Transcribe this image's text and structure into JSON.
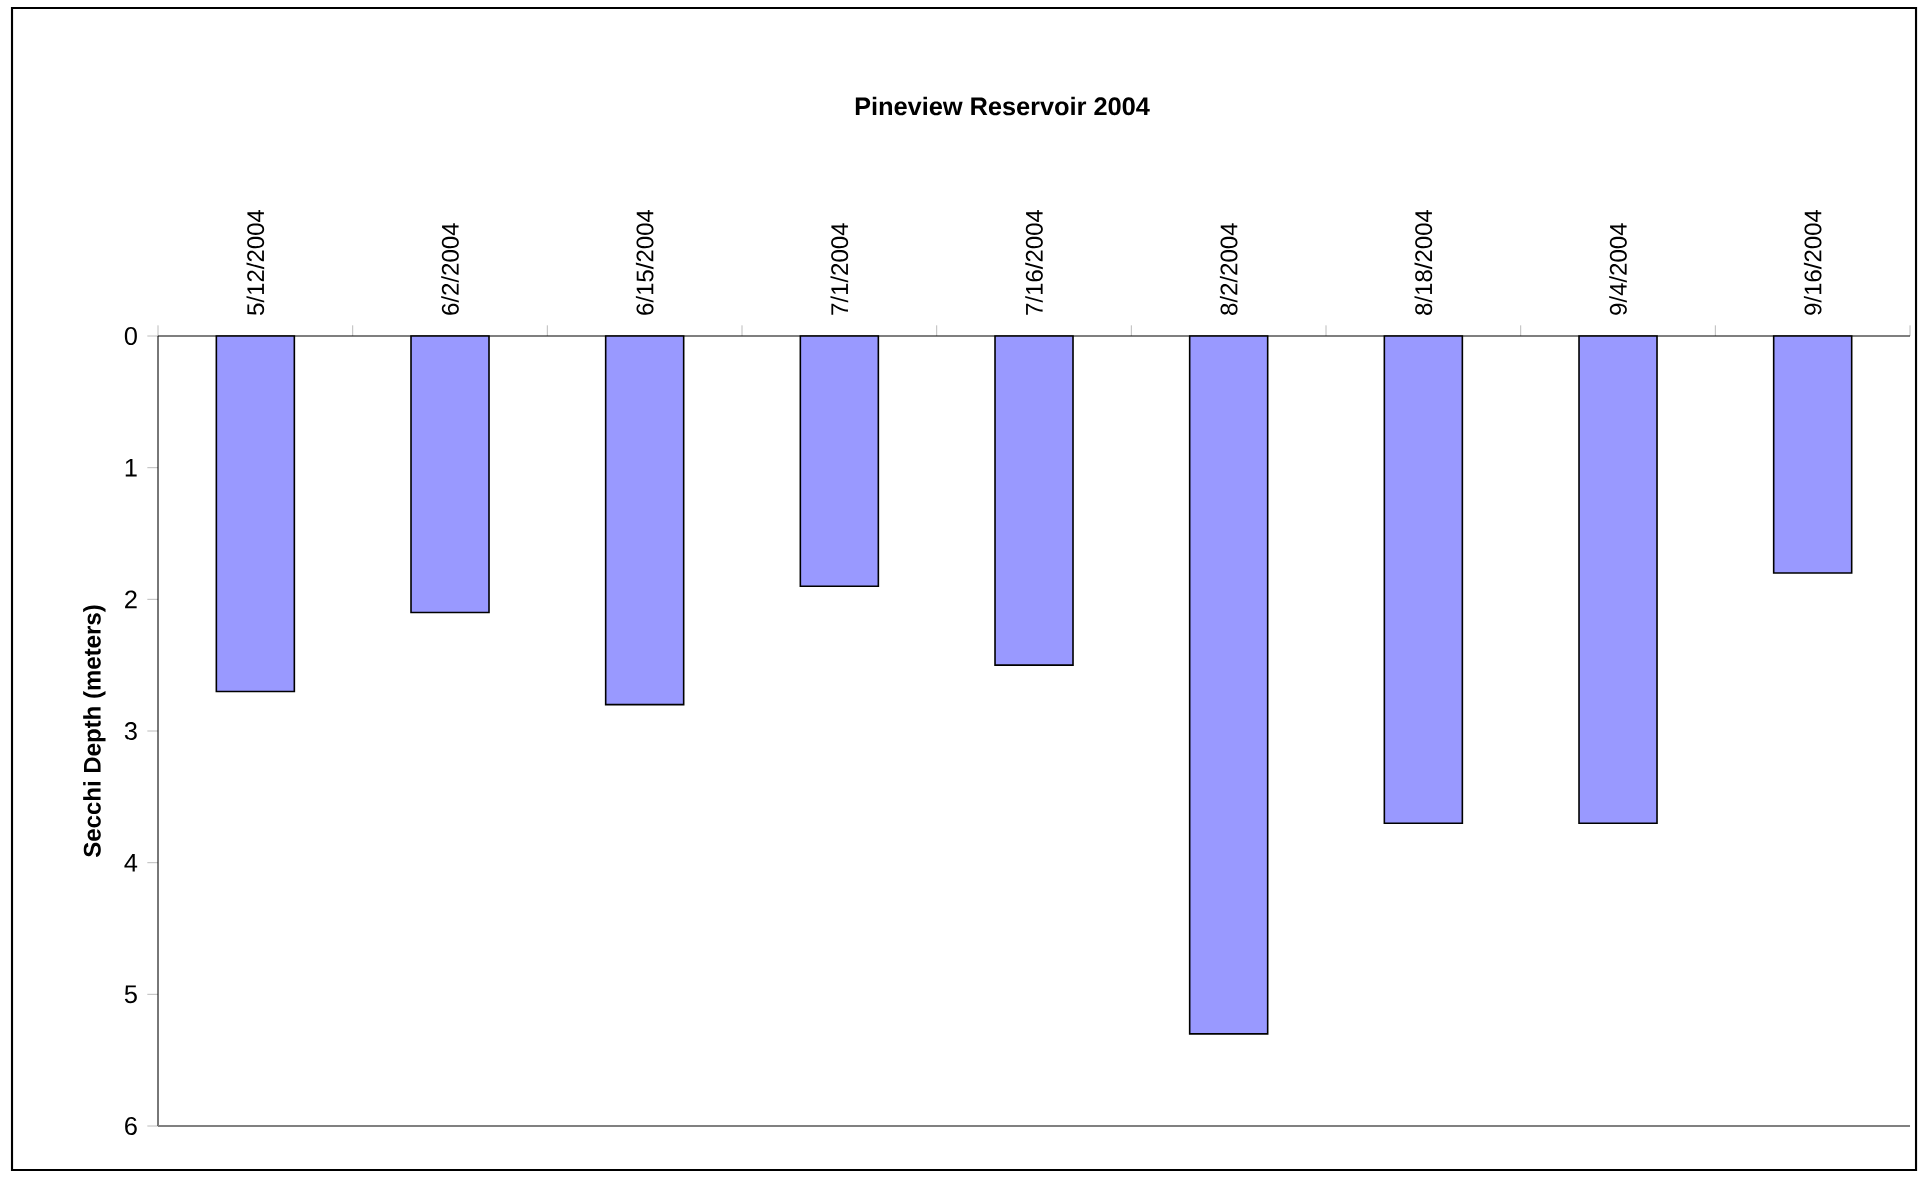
{
  "chart_data": {
    "type": "bar",
    "title": "Pineview Reservoir 2004",
    "ylabel": "Secchi Depth (meters)",
    "categories": [
      "5/12/2004",
      "6/2/2004",
      "6/15/2004",
      "7/1/2004",
      "7/16/2004",
      "8/2/2004",
      "8/18/2004",
      "9/4/2004",
      "9/16/2004"
    ],
    "values": [
      2.7,
      2.1,
      2.8,
      1.9,
      2.5,
      5.3,
      3.7,
      3.7,
      1.8
    ],
    "color": "#9999ff",
    "ylim": [
      6,
      0
    ],
    "yticks": [
      0,
      1,
      2,
      3,
      4,
      5,
      6
    ]
  }
}
